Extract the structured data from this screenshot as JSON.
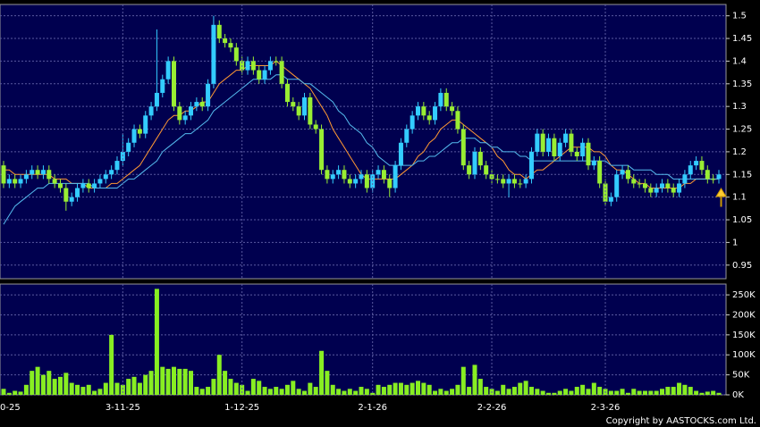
{
  "chart_data": [
    {
      "type": "candlestick",
      "up_color": "#33ccff",
      "down_color": "#99ee33",
      "grid": true,
      "ylim": [
        0.92,
        1.525
      ],
      "yticks": [
        1.5,
        1.45,
        1.4,
        1.35,
        1.3,
        1.25,
        1.2,
        1.15,
        1.1,
        1.05,
        1,
        0.95
      ],
      "open": [
        1.17,
        1.13,
        1.14,
        1.13,
        1.14,
        1.15,
        1.16,
        1.15,
        1.16,
        1.14,
        1.13,
        1.12,
        1.09,
        1.1,
        1.12,
        1.13,
        1.12,
        1.13,
        1.14,
        1.15,
        1.16,
        1.18,
        1.2,
        1.22,
        1.25,
        1.24,
        1.28,
        1.3,
        1.33,
        1.36,
        1.4,
        1.3,
        1.27,
        1.28,
        1.3,
        1.31,
        1.3,
        1.35,
        1.48,
        1.45,
        1.44,
        1.43,
        1.4,
        1.38,
        1.4,
        1.38,
        1.36,
        1.38,
        1.4,
        1.4,
        1.35,
        1.31,
        1.3,
        1.28,
        1.32,
        1.26,
        1.25,
        1.16,
        1.14,
        1.15,
        1.16,
        1.14,
        1.13,
        1.14,
        1.15,
        1.12,
        1.15,
        1.16,
        1.14,
        1.12,
        1.17,
        1.22,
        1.25,
        1.28,
        1.3,
        1.28,
        1.27,
        1.3,
        1.33,
        1.3,
        1.29,
        1.25,
        1.17,
        1.15,
        1.2,
        1.17,
        1.15,
        1.14,
        1.14,
        1.13,
        1.14,
        1.13,
        1.13,
        1.14,
        1.2,
        1.24,
        1.2,
        1.23,
        1.19,
        1.22,
        1.24,
        1.2,
        1.19,
        1.22,
        1.17,
        1.18,
        1.13,
        1.09,
        1.1,
        1.15,
        1.16,
        1.14,
        1.13,
        1.13,
        1.12,
        1.11,
        1.12,
        1.13,
        1.12,
        1.11,
        1.13,
        1.15,
        1.17,
        1.18,
        1.16,
        1.14,
        1.14
      ],
      "high": [
        1.18,
        1.15,
        1.15,
        1.15,
        1.16,
        1.17,
        1.17,
        1.17,
        1.17,
        1.15,
        1.14,
        1.13,
        1.11,
        1.13,
        1.14,
        1.14,
        1.14,
        1.15,
        1.16,
        1.17,
        1.19,
        1.24,
        1.23,
        1.26,
        1.26,
        1.29,
        1.31,
        1.47,
        1.37,
        1.41,
        1.41,
        1.31,
        1.29,
        1.31,
        1.32,
        1.32,
        1.36,
        1.5,
        1.49,
        1.46,
        1.45,
        1.44,
        1.41,
        1.41,
        1.41,
        1.39,
        1.39,
        1.41,
        1.41,
        1.41,
        1.36,
        1.32,
        1.31,
        1.33,
        1.33,
        1.27,
        1.26,
        1.17,
        1.16,
        1.17,
        1.17,
        1.15,
        1.15,
        1.16,
        1.16,
        1.16,
        1.17,
        1.17,
        1.15,
        1.18,
        1.23,
        1.26,
        1.29,
        1.31,
        1.31,
        1.29,
        1.31,
        1.34,
        1.34,
        1.31,
        1.3,
        1.26,
        1.18,
        1.21,
        1.21,
        1.18,
        1.16,
        1.15,
        1.15,
        1.15,
        1.15,
        1.14,
        1.15,
        1.21,
        1.25,
        1.25,
        1.24,
        1.24,
        1.23,
        1.25,
        1.25,
        1.21,
        1.23,
        1.23,
        1.19,
        1.19,
        1.14,
        1.11,
        1.16,
        1.17,
        1.17,
        1.15,
        1.14,
        1.14,
        1.13,
        1.13,
        1.14,
        1.14,
        1.13,
        1.14,
        1.16,
        1.18,
        1.19,
        1.19,
        1.17,
        1.15,
        1.16
      ],
      "low": [
        1.12,
        1.12,
        1.12,
        1.12,
        1.13,
        1.14,
        1.14,
        1.14,
        1.13,
        1.12,
        1.11,
        1.07,
        1.08,
        1.09,
        1.11,
        1.11,
        1.11,
        1.12,
        1.13,
        1.14,
        1.15,
        1.17,
        1.19,
        1.21,
        1.23,
        1.23,
        1.27,
        1.29,
        1.32,
        1.35,
        1.29,
        1.26,
        1.26,
        1.27,
        1.29,
        1.29,
        1.29,
        1.34,
        1.44,
        1.43,
        1.42,
        1.39,
        1.37,
        1.37,
        1.37,
        1.35,
        1.35,
        1.37,
        1.39,
        1.34,
        1.3,
        1.29,
        1.27,
        1.27,
        1.25,
        1.24,
        1.15,
        1.13,
        1.13,
        1.14,
        1.13,
        1.12,
        1.12,
        1.13,
        1.11,
        1.11,
        1.14,
        1.13,
        1.1,
        1.11,
        1.16,
        1.21,
        1.24,
        1.27,
        1.27,
        1.26,
        1.26,
        1.29,
        1.29,
        1.28,
        1.24,
        1.16,
        1.14,
        1.14,
        1.16,
        1.14,
        1.13,
        1.13,
        1.12,
        1.1,
        1.12,
        1.12,
        1.12,
        1.13,
        1.19,
        1.19,
        1.19,
        1.18,
        1.18,
        1.21,
        1.19,
        1.18,
        1.18,
        1.16,
        1.16,
        1.12,
        1.08,
        1.08,
        1.09,
        1.14,
        1.13,
        1.12,
        1.12,
        1.11,
        1.1,
        1.1,
        1.11,
        1.11,
        1.1,
        1.1,
        1.12,
        1.14,
        1.16,
        1.15,
        1.13,
        1.13,
        1.13
      ],
      "close": [
        1.13,
        1.14,
        1.13,
        1.14,
        1.15,
        1.16,
        1.15,
        1.16,
        1.14,
        1.13,
        1.12,
        1.09,
        1.1,
        1.12,
        1.13,
        1.12,
        1.13,
        1.14,
        1.15,
        1.16,
        1.18,
        1.2,
        1.22,
        1.25,
        1.24,
        1.28,
        1.3,
        1.33,
        1.36,
        1.4,
        1.3,
        1.27,
        1.28,
        1.3,
        1.31,
        1.3,
        1.35,
        1.48,
        1.45,
        1.44,
        1.43,
        1.4,
        1.38,
        1.4,
        1.38,
        1.36,
        1.38,
        1.4,
        1.4,
        1.35,
        1.31,
        1.3,
        1.28,
        1.32,
        1.26,
        1.25,
        1.16,
        1.14,
        1.15,
        1.16,
        1.14,
        1.13,
        1.14,
        1.15,
        1.12,
        1.15,
        1.16,
        1.14,
        1.12,
        1.17,
        1.22,
        1.25,
        1.28,
        1.3,
        1.28,
        1.27,
        1.3,
        1.33,
        1.3,
        1.29,
        1.25,
        1.17,
        1.15,
        1.2,
        1.17,
        1.15,
        1.14,
        1.14,
        1.13,
        1.14,
        1.13,
        1.13,
        1.14,
        1.2,
        1.24,
        1.2,
        1.23,
        1.19,
        1.22,
        1.24,
        1.2,
        1.19,
        1.22,
        1.17,
        1.18,
        1.13,
        1.09,
        1.1,
        1.15,
        1.16,
        1.14,
        1.13,
        1.13,
        1.12,
        1.11,
        1.12,
        1.13,
        1.12,
        1.11,
        1.13,
        1.15,
        1.17,
        1.18,
        1.16,
        1.14,
        1.14,
        1.15
      ],
      "series": [
        {
          "color": "#ff9933",
          "values": [
            1.16,
            1.16,
            1.15,
            1.15,
            1.15,
            1.15,
            1.15,
            1.15,
            1.15,
            1.14,
            1.14,
            1.14,
            1.13,
            1.13,
            1.13,
            1.12,
            1.12,
            1.12,
            1.12,
            1.13,
            1.13,
            1.14,
            1.15,
            1.16,
            1.17,
            1.19,
            1.21,
            1.23,
            1.25,
            1.27,
            1.28,
            1.28,
            1.29,
            1.29,
            1.3,
            1.31,
            1.31,
            1.33,
            1.35,
            1.36,
            1.37,
            1.38,
            1.38,
            1.39,
            1.39,
            1.39,
            1.39,
            1.39,
            1.4,
            1.39,
            1.38,
            1.37,
            1.36,
            1.35,
            1.34,
            1.32,
            1.3,
            1.28,
            1.25,
            1.23,
            1.21,
            1.19,
            1.17,
            1.15,
            1.14,
            1.14,
            1.14,
            1.14,
            1.14,
            1.14,
            1.15,
            1.16,
            1.17,
            1.19,
            1.2,
            1.22,
            1.23,
            1.25,
            1.26,
            1.27,
            1.27,
            1.26,
            1.25,
            1.24,
            1.23,
            1.22,
            1.21,
            1.19,
            1.18,
            1.16,
            1.15,
            1.15,
            1.14,
            1.15,
            1.16,
            1.16,
            1.17,
            1.18,
            1.19,
            1.2,
            1.21,
            1.21,
            1.21,
            1.21,
            1.2,
            1.2,
            1.19,
            1.17,
            1.16,
            1.16,
            1.15,
            1.14,
            1.13,
            1.13,
            1.12,
            1.12,
            1.12,
            1.12,
            1.12,
            1.12,
            1.13,
            1.13,
            1.14,
            1.14,
            1.14,
            1.14,
            1.14
          ]
        },
        {
          "color": "#55bbee",
          "values": [
            1.04,
            1.06,
            1.08,
            1.09,
            1.1,
            1.11,
            1.12,
            1.12,
            1.13,
            1.13,
            1.13,
            1.13,
            1.13,
            1.13,
            1.13,
            1.13,
            1.12,
            1.12,
            1.12,
            1.12,
            1.12,
            1.13,
            1.14,
            1.14,
            1.15,
            1.16,
            1.17,
            1.18,
            1.2,
            1.21,
            1.22,
            1.23,
            1.24,
            1.24,
            1.25,
            1.26,
            1.27,
            1.29,
            1.3,
            1.31,
            1.32,
            1.33,
            1.34,
            1.35,
            1.36,
            1.36,
            1.36,
            1.36,
            1.37,
            1.37,
            1.36,
            1.36,
            1.36,
            1.35,
            1.35,
            1.34,
            1.33,
            1.32,
            1.31,
            1.29,
            1.28,
            1.26,
            1.25,
            1.24,
            1.22,
            1.21,
            1.19,
            1.18,
            1.17,
            1.17,
            1.17,
            1.17,
            1.17,
            1.18,
            1.18,
            1.19,
            1.19,
            1.2,
            1.21,
            1.22,
            1.22,
            1.23,
            1.23,
            1.23,
            1.22,
            1.22,
            1.21,
            1.21,
            1.2,
            1.2,
            1.2,
            1.19,
            1.19,
            1.18,
            1.18,
            1.18,
            1.18,
            1.18,
            1.18,
            1.18,
            1.18,
            1.18,
            1.18,
            1.18,
            1.18,
            1.18,
            1.18,
            1.17,
            1.17,
            1.17,
            1.17,
            1.16,
            1.16,
            1.16,
            1.16,
            1.15,
            1.15,
            1.15,
            1.14,
            1.14,
            1.14,
            1.14,
            1.14,
            1.14,
            1.14,
            1.14,
            1.14
          ]
        }
      ]
    },
    {
      "type": "bar",
      "color": "#88ee22",
      "grid": true,
      "ylim": [
        0,
        277000
      ],
      "yticks": [
        {
          "value": 250000,
          "label": "250K"
        },
        {
          "value": 200000,
          "label": "200K"
        },
        {
          "value": 150000,
          "label": "150K"
        },
        {
          "value": 100000,
          "label": "100K"
        },
        {
          "value": 50000,
          "label": "50K"
        },
        {
          "value": 0,
          "label": "0K"
        }
      ],
      "categories": [
        "0-25",
        null,
        null,
        null,
        null,
        null,
        null,
        null,
        null,
        null,
        null,
        null,
        null,
        null,
        null,
        null,
        null,
        null,
        null,
        null,
        null,
        "3-11-25",
        null,
        null,
        null,
        null,
        null,
        null,
        null,
        null,
        null,
        null,
        null,
        null,
        null,
        null,
        null,
        null,
        null,
        null,
        null,
        null,
        "1-12-25",
        null,
        null,
        null,
        null,
        null,
        null,
        null,
        null,
        null,
        null,
        null,
        null,
        null,
        null,
        null,
        null,
        null,
        null,
        null,
        null,
        null,
        null,
        "2-1-26",
        null,
        null,
        null,
        null,
        null,
        null,
        null,
        null,
        null,
        null,
        null,
        null,
        null,
        null,
        null,
        null,
        null,
        null,
        null,
        null,
        "2-2-26",
        null,
        null,
        null,
        null,
        null,
        null,
        null,
        null,
        null,
        null,
        null,
        null,
        null,
        null,
        null,
        null,
        null,
        null,
        null,
        "2-3-26",
        null,
        null,
        null,
        null,
        null,
        null,
        null,
        null,
        null,
        null,
        null,
        null,
        null,
        null,
        null,
        null,
        null,
        null,
        null,
        null
      ],
      "values": [
        15000,
        5000,
        10000,
        8000,
        25000,
        60000,
        70000,
        50000,
        60000,
        40000,
        45000,
        55000,
        30000,
        25000,
        20000,
        25000,
        10000,
        15000,
        30000,
        150000,
        30000,
        25000,
        40000,
        45000,
        30000,
        50000,
        60000,
        265000,
        70000,
        65000,
        70000,
        65000,
        65000,
        60000,
        20000,
        15000,
        20000,
        40000,
        100000,
        60000,
        40000,
        30000,
        25000,
        10000,
        40000,
        35000,
        20000,
        15000,
        20000,
        15000,
        25000,
        35000,
        15000,
        10000,
        30000,
        20000,
        110000,
        60000,
        25000,
        15000,
        10000,
        15000,
        10000,
        20000,
        15000,
        5000,
        25000,
        20000,
        25000,
        30000,
        30000,
        25000,
        30000,
        35000,
        30000,
        25000,
        10000,
        15000,
        10000,
        15000,
        25000,
        70000,
        20000,
        75000,
        40000,
        20000,
        15000,
        10000,
        25000,
        15000,
        20000,
        30000,
        35000,
        20000,
        15000,
        10000,
        5000,
        5000,
        10000,
        15000,
        10000,
        20000,
        25000,
        15000,
        30000,
        20000,
        15000,
        10000,
        10000,
        15000,
        5000,
        15000,
        10000,
        10000,
        10000,
        10000,
        15000,
        20000,
        20000,
        30000,
        25000,
        20000,
        10000,
        5000,
        8000,
        10000,
        5000
      ]
    }
  ],
  "footer": "Copyright by AASTOCKS.com Ltd."
}
